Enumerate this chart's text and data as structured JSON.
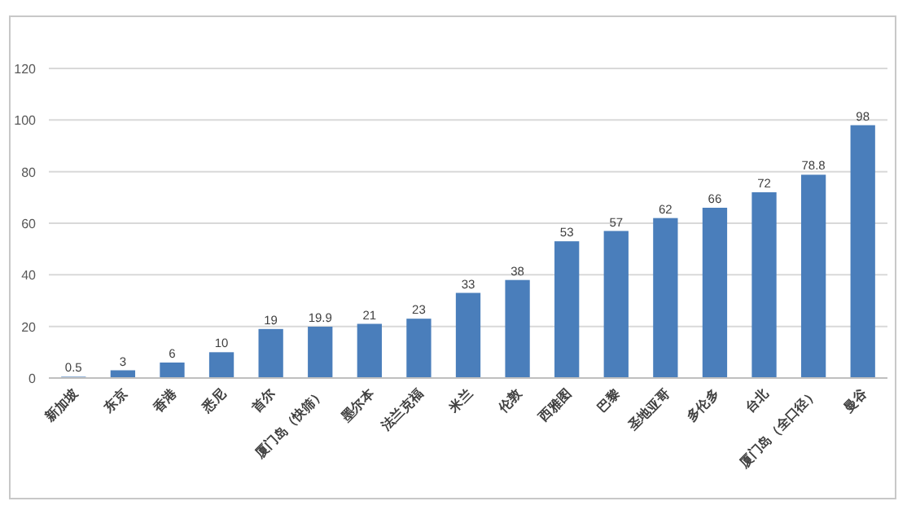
{
  "chart_data": {
    "type": "bar",
    "categories": [
      "新加坡",
      "东京",
      "香港",
      "悉尼",
      "首尔",
      "厦门岛（快筛）",
      "墨尔本",
      "法兰克福",
      "米兰",
      "伦敦",
      "西雅图",
      "巴黎",
      "圣地亚哥",
      "多伦多",
      "台北",
      "厦门岛（全口径）",
      "曼谷"
    ],
    "values": [
      0.5,
      3,
      6,
      10,
      19,
      19.9,
      21,
      23,
      33,
      38,
      53,
      57,
      62,
      66,
      72,
      78.8,
      98
    ],
    "color": "#4a7ebb",
    "ylim": [
      0,
      120
    ],
    "yticks": [
      0,
      20,
      40,
      60,
      80,
      100,
      120
    ],
    "grid": "y",
    "data_labels": true
  }
}
